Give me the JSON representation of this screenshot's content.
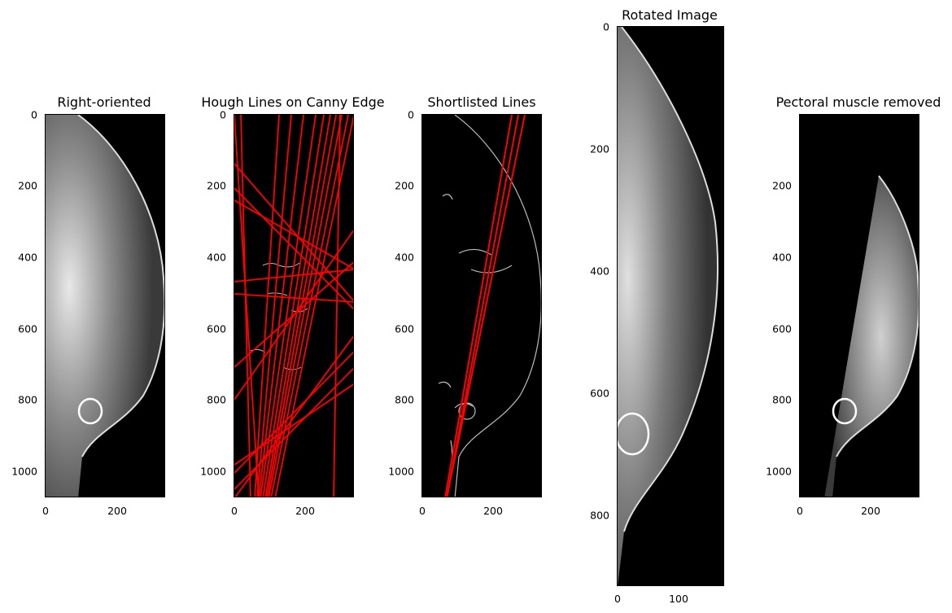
{
  "figure": {
    "panels": [
      {
        "id": "right-oriented",
        "title": "Right-oriented",
        "y_ticks": [
          "0",
          "200",
          "400",
          "600",
          "800",
          "1000"
        ],
        "x_ticks": [
          "0",
          "200"
        ],
        "xlim": [
          0,
          340
        ],
        "ylim": [
          1075,
          0
        ]
      },
      {
        "id": "hough-lines",
        "title": "Hough Lines on Canny Edge",
        "y_ticks": [
          "0",
          "200",
          "400",
          "600",
          "800",
          "1000"
        ],
        "x_ticks": [
          "0",
          "200"
        ],
        "xlim": [
          0,
          340
        ],
        "ylim": [
          1075,
          0
        ],
        "line_color": "#ff0000"
      },
      {
        "id": "shortlisted-lines",
        "title": "Shortlisted Lines",
        "y_ticks": [
          "0",
          "200",
          "400",
          "600",
          "800",
          "1000"
        ],
        "x_ticks": [
          "0",
          "200"
        ],
        "xlim": [
          0,
          340
        ],
        "ylim": [
          1075,
          0
        ],
        "line_color": "#ff0000"
      },
      {
        "id": "rotated-image",
        "title": "Rotated Image",
        "y_ticks": [
          "0",
          "200",
          "400",
          "600",
          "800"
        ],
        "x_ticks": [
          "0",
          "100"
        ],
        "xlim": [
          0,
          176
        ],
        "ylim": [
          917,
          0
        ]
      },
      {
        "id": "pectoral-removed",
        "title": "Pectoral muscle removed",
        "y_ticks": [
          "200",
          "400",
          "600",
          "800",
          "1000"
        ],
        "x_ticks": [
          "0",
          "200"
        ],
        "xlim": [
          0,
          340
        ],
        "ylim": [
          1075,
          0
        ]
      }
    ]
  }
}
